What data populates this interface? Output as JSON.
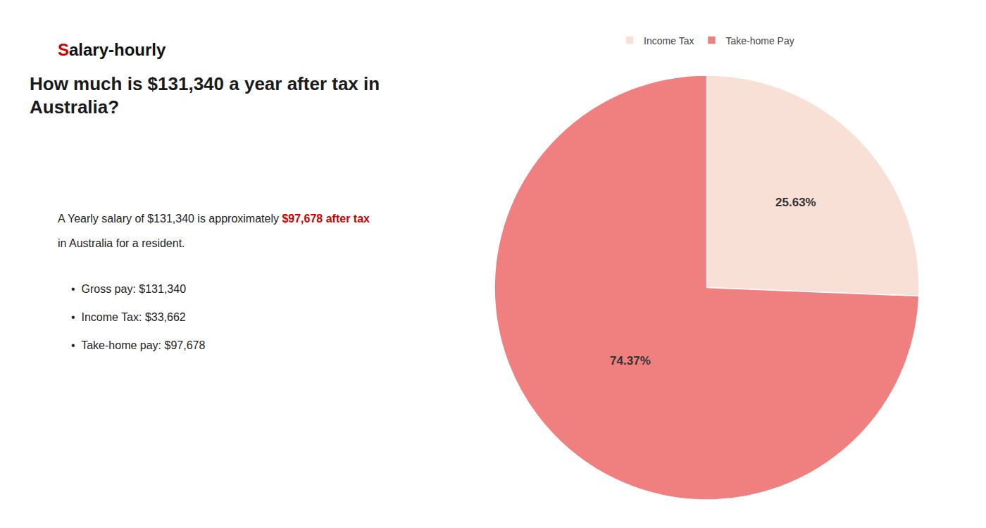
{
  "chart_data": {
    "type": "pie",
    "title": "How much is $131,340 a year after tax in\nAustralia?",
    "categories": [
      "Income Tax",
      "Take-home Pay"
    ],
    "values": [
      25.63,
      74.37
    ],
    "value_labels": [
      "25.63%",
      "74.37%"
    ],
    "colors": [
      "#f9e0d6",
      "#f08080"
    ],
    "data_labels": true,
    "legend": "top",
    "annotations": [
      {
        "text": "S",
        "color": "#cc0000"
      },
      {
        "text": "alary-hourly",
        "color": "#111111"
      },
      {
        "text": "A Yearly salary of $131,340 is approximately ",
        "color": "#222222"
      },
      {
        "text": "$97,678 after tax",
        "color": "#cc0000"
      },
      {
        "text": "in Australia for a resident.",
        "color": "#222222"
      },
      {
        "text": "•  Gross pay: $131,340",
        "color": "#222222"
      },
      {
        "text": "•  Income Tax: $33,662",
        "color": "#222222"
      },
      {
        "text": "•  Take-home pay: $97,678",
        "color": "#222222"
      }
    ]
  }
}
